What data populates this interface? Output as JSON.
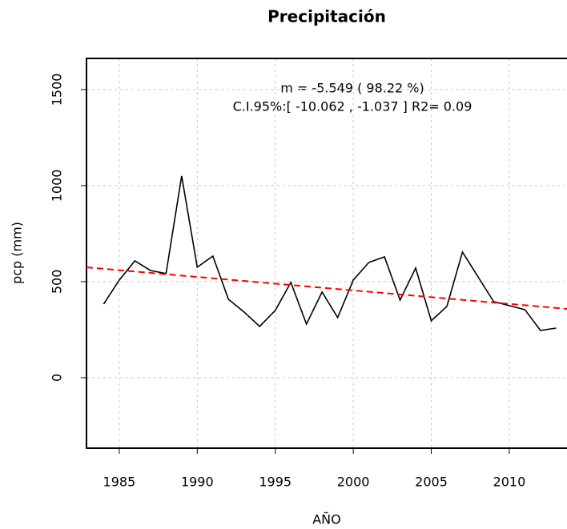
{
  "chart_data": {
    "type": "line",
    "title": "Precipitación",
    "x_label": "AÑO",
    "y_label": "pcp (mm)",
    "annotations": [
      "m =  -5.549 ( 98.22 %)",
      "C.I.95%:[ -10.062 , -1.037 ]   R2= 0.09"
    ],
    "x": [
      1984,
      1985,
      1986,
      1987,
      1988,
      1989,
      1990,
      1991,
      1992,
      1993,
      1994,
      1995,
      1996,
      1997,
      1998,
      1999,
      2000,
      2001,
      2002,
      2003,
      2004,
      2005,
      2006,
      2007,
      2008,
      2009,
      2010,
      2011,
      2012,
      2013
    ],
    "series": [
      {
        "name": "pcp",
        "color": "#000000",
        "values": [
          383,
          508,
          608,
          558,
          542,
          1050,
          575,
          633,
          408,
          342,
          267,
          350,
          496,
          279,
          446,
          313,
          508,
          600,
          629,
          404,
          571,
          296,
          371,
          654,
          525,
          396,
          375,
          354,
          246,
          258
        ]
      }
    ],
    "trend_color": "#ff0000",
    "xlim": [
      1982.9,
      2013.7
    ],
    "ylim": [
      -367,
      1662
    ],
    "xticks": [
      1985,
      1990,
      1995,
      2000,
      2005,
      2010
    ],
    "yticks": [
      0,
      500,
      1000,
      1500
    ],
    "grid": true
  }
}
